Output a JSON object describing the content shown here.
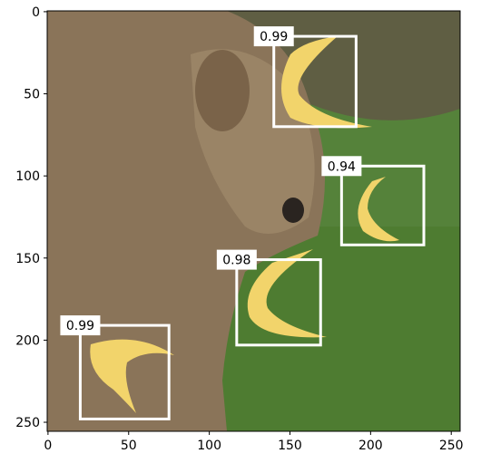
{
  "chart_data": {
    "type": "detection",
    "xlim": [
      -0.5,
      255.5
    ],
    "ylim": [
      255.5,
      -0.5
    ],
    "xticks": [
      0,
      50,
      100,
      150,
      200,
      250
    ],
    "yticks": [
      0,
      50,
      100,
      150,
      200,
      250
    ],
    "box_color": "#ffffff",
    "boxes": [
      {
        "x0": 140,
        "y0": 15,
        "x1": 191,
        "y1": 70,
        "score": 0.99
      },
      {
        "x0": 182,
        "y0": 94,
        "x1": 233,
        "y1": 142,
        "score": 0.94
      },
      {
        "x0": 117,
        "y0": 151,
        "x1": 169,
        "y1": 203,
        "score": 0.98
      },
      {
        "x0": 20,
        "y0": 191,
        "x1": 75,
        "y1": 248,
        "score": 0.99
      }
    ]
  }
}
